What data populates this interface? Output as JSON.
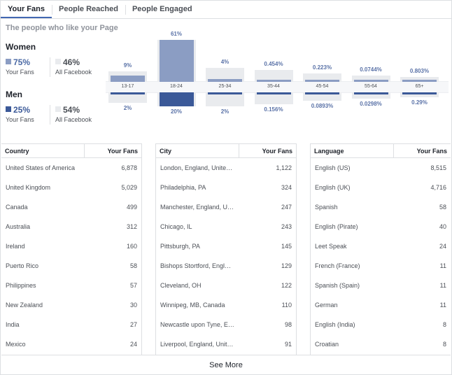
{
  "tabs": [
    {
      "label": "Your Fans"
    },
    {
      "label": "People Reached"
    },
    {
      "label": "People Engaged"
    }
  ],
  "subtitle": "The people who like your Page",
  "women": {
    "title": "Women",
    "fans_pct": "75%",
    "fans_cap": "Your Fans",
    "fb_pct": "46%",
    "fb_cap": "All Facebook"
  },
  "men": {
    "title": "Men",
    "fans_pct": "25%",
    "fans_cap": "Your Fans",
    "fb_pct": "54%",
    "fb_cap": "All Facebook"
  },
  "colors": {
    "women": "#8b9dc3",
    "men": "#3b5998",
    "bar_bg": "#e9ebee"
  },
  "chart_data": {
    "type": "bar",
    "categories": [
      "13-17",
      "18-24",
      "25-34",
      "35-44",
      "45-54",
      "55-64",
      "65+"
    ],
    "series": [
      {
        "name": "Women",
        "values": [
          9,
          61,
          4,
          0.454,
          0.223,
          0.0744,
          0.803
        ],
        "labels": [
          "9%",
          "61%",
          "4%",
          "0.454%",
          "0.223%",
          "0.0744%",
          "0.803%"
        ]
      },
      {
        "name": "Men",
        "values": [
          2,
          20,
          2,
          0.156,
          0.0893,
          0.0298,
          0.29
        ],
        "labels": [
          "2%",
          "20%",
          "2%",
          "0.156%",
          "0.0893%",
          "0.0298%",
          "0.29%"
        ]
      }
    ],
    "facebook_women": [
      15,
      61,
      20,
      17,
      12,
      9,
      7
    ],
    "facebook_men": [
      15,
      20,
      20,
      17,
      12,
      9,
      7
    ]
  },
  "country": {
    "header": "Country",
    "count_header": "Your Fans",
    "rows": [
      {
        "name": "United States of America",
        "count": "6,878"
      },
      {
        "name": "United Kingdom",
        "count": "5,029"
      },
      {
        "name": "Canada",
        "count": "499"
      },
      {
        "name": "Australia",
        "count": "312"
      },
      {
        "name": "Ireland",
        "count": "160"
      },
      {
        "name": "Puerto Rico",
        "count": "58"
      },
      {
        "name": "Philippines",
        "count": "57"
      },
      {
        "name": "New Zealand",
        "count": "30"
      },
      {
        "name": "India",
        "count": "27"
      },
      {
        "name": "Mexico",
        "count": "24"
      }
    ]
  },
  "city": {
    "header": "City",
    "count_header": "Your Fans",
    "rows": [
      {
        "name": "London, England, Unite…",
        "count": "1,122"
      },
      {
        "name": "Philadelphia, PA",
        "count": "324"
      },
      {
        "name": "Manchester, England, U…",
        "count": "247"
      },
      {
        "name": "Chicago, IL",
        "count": "243"
      },
      {
        "name": "Pittsburgh, PA",
        "count": "145"
      },
      {
        "name": "Bishops Stortford, Engl…",
        "count": "129"
      },
      {
        "name": "Cleveland, OH",
        "count": "122"
      },
      {
        "name": "Winnipeg, MB, Canada",
        "count": "110"
      },
      {
        "name": "Newcastle upon Tyne, E…",
        "count": "98"
      },
      {
        "name": "Liverpool, England, Unit…",
        "count": "91"
      }
    ]
  },
  "language": {
    "header": "Language",
    "count_header": "Your Fans",
    "rows": [
      {
        "name": "English (US)",
        "count": "8,515"
      },
      {
        "name": "English (UK)",
        "count": "4,716"
      },
      {
        "name": "Spanish",
        "count": "58"
      },
      {
        "name": "English (Pirate)",
        "count": "40"
      },
      {
        "name": "Leet Speak",
        "count": "24"
      },
      {
        "name": "French (France)",
        "count": "11"
      },
      {
        "name": "Spanish (Spain)",
        "count": "11"
      },
      {
        "name": "German",
        "count": "11"
      },
      {
        "name": "English (India)",
        "count": "8"
      },
      {
        "name": "Croatian",
        "count": "8"
      }
    ]
  },
  "see_more": "See More"
}
